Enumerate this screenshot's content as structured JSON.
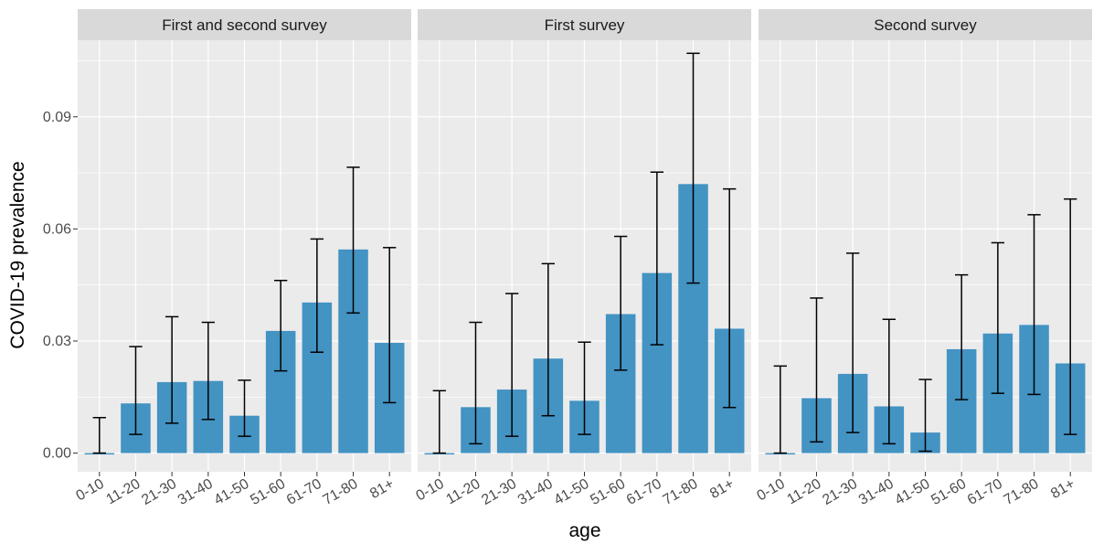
{
  "chart_data": {
    "type": "bar",
    "xlabel": "age",
    "ylabel": "COVID-19 prevalence",
    "ylim": [
      -0.005,
      0.1105
    ],
    "yticks": [
      0.0,
      0.03,
      0.06,
      0.09
    ],
    "ytick_labels": [
      "0.00",
      "0.03",
      "0.06",
      "0.09"
    ],
    "categories": [
      "0-10",
      "11-20",
      "21-30",
      "31-40",
      "41-50",
      "51-60",
      "61-70",
      "71-80",
      "81+"
    ],
    "bar_color": "#4393C3",
    "panel_background": "#EBEBEB",
    "strip_background": "#D9D9D9",
    "grid": true,
    "facets": [
      {
        "name": "First and second survey",
        "values": [
          0.0,
          0.0133,
          0.019,
          0.0193,
          0.01,
          0.0327,
          0.0403,
          0.0545,
          0.0295
        ],
        "lower": [
          0.0,
          0.005,
          0.008,
          0.009,
          0.0045,
          0.022,
          0.027,
          0.0375,
          0.0135
        ],
        "upper": [
          0.0095,
          0.0285,
          0.0365,
          0.035,
          0.0195,
          0.0462,
          0.0573,
          0.0765,
          0.055
        ]
      },
      {
        "name": "First survey",
        "values": [
          0.0,
          0.0123,
          0.017,
          0.0253,
          0.014,
          0.0372,
          0.0482,
          0.072,
          0.0333
        ],
        "lower": [
          0.0,
          0.0025,
          0.0045,
          0.01,
          0.005,
          0.0222,
          0.029,
          0.0455,
          0.0122
        ],
        "upper": [
          0.0167,
          0.035,
          0.0427,
          0.0507,
          0.0297,
          0.058,
          0.0752,
          0.107,
          0.0707
        ]
      },
      {
        "name": "Second survey",
        "values": [
          0.0,
          0.0147,
          0.0212,
          0.0125,
          0.0055,
          0.0278,
          0.032,
          0.0343,
          0.024
        ],
        "lower": [
          0.0,
          0.003,
          0.0055,
          0.0025,
          0.0005,
          0.0143,
          0.016,
          0.0157,
          0.005
        ],
        "upper": [
          0.0233,
          0.0415,
          0.0535,
          0.0358,
          0.0197,
          0.0477,
          0.0563,
          0.0638,
          0.068
        ]
      }
    ]
  }
}
